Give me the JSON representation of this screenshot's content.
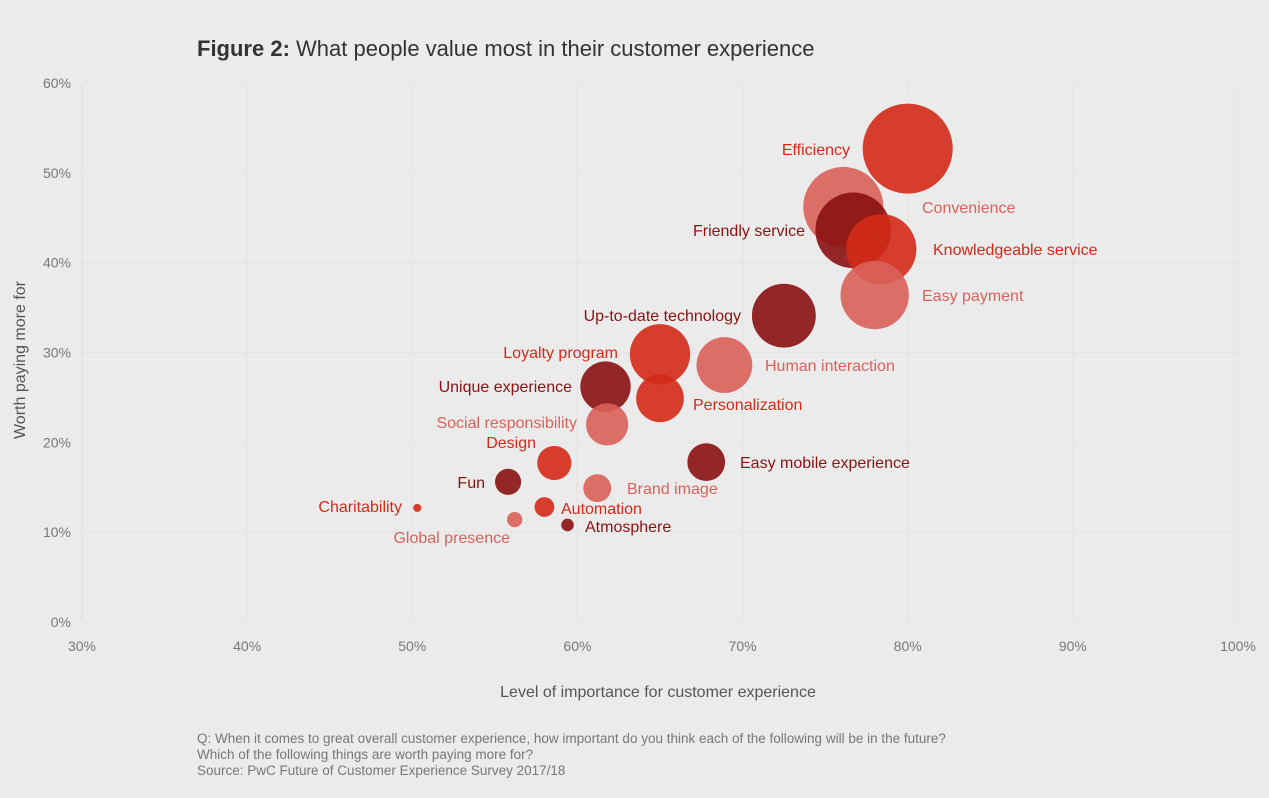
{
  "chart_data": {
    "type": "scatter",
    "title_prefix": "Figure 2:",
    "title": "What people value most in their customer experience",
    "xlabel": "Level of importance for customer experience",
    "ylabel": "Worth paying more for",
    "xlim": [
      30,
      100
    ],
    "ylim": [
      0,
      60
    ],
    "x_ticks": [
      "30%",
      "40%",
      "50%",
      "60%",
      "70%",
      "80%",
      "90%",
      "100%"
    ],
    "y_ticks": [
      "0%",
      "10%",
      "20%",
      "30%",
      "40%",
      "50%",
      "60%"
    ],
    "grid": true,
    "colors": {
      "bright": "#d42a18",
      "dark": "#8a1212",
      "light": "#d9625a"
    },
    "points": [
      {
        "label": "Efficiency",
        "x": 80.0,
        "y": 52.7,
        "size": 100,
        "color": "bright"
      },
      {
        "label": "Convenience",
        "x": 76.1,
        "y": 46.2,
        "size": 89,
        "color": "light"
      },
      {
        "label": "Friendly service",
        "x": 76.7,
        "y": 43.6,
        "size": 84,
        "color": "dark"
      },
      {
        "label": "Knowledgeable service",
        "x": 78.4,
        "y": 41.5,
        "size": 78,
        "color": "bright"
      },
      {
        "label": "Easy payment",
        "x": 78.0,
        "y": 36.4,
        "size": 76,
        "color": "light"
      },
      {
        "label": "Up-to-date technology",
        "x": 72.5,
        "y": 34.1,
        "size": 71,
        "color": "dark"
      },
      {
        "label": "Human interaction",
        "x": 68.9,
        "y": 28.6,
        "size": 62,
        "color": "light"
      },
      {
        "label": "Loyalty program",
        "x": 65.0,
        "y": 29.8,
        "size": 67,
        "color": "bright"
      },
      {
        "label": "Unique experience",
        "x": 61.7,
        "y": 26.2,
        "size": 56,
        "color": "dark"
      },
      {
        "label": "Personalization",
        "x": 65.0,
        "y": 24.9,
        "size": 53,
        "color": "bright"
      },
      {
        "label": "Social responsibility",
        "x": 61.8,
        "y": 22.0,
        "size": 47,
        "color": "light"
      },
      {
        "label": "Design",
        "x": 58.6,
        "y": 17.7,
        "size": 38,
        "color": "bright"
      },
      {
        "label": "Easy mobile experience",
        "x": 67.8,
        "y": 17.8,
        "size": 42,
        "color": "dark"
      },
      {
        "label": "Brand image",
        "x": 61.2,
        "y": 14.9,
        "size": 31,
        "color": "light"
      },
      {
        "label": "Fun",
        "x": 55.8,
        "y": 15.6,
        "size": 29,
        "color": "dark"
      },
      {
        "label": "Automation",
        "x": 58.0,
        "y": 12.8,
        "size": 22,
        "color": "bright"
      },
      {
        "label": "Charitability",
        "x": 50.3,
        "y": 12.7,
        "size": 9,
        "color": "bright"
      },
      {
        "label": "Global presence",
        "x": 56.2,
        "y": 11.4,
        "size": 17,
        "color": "light"
      },
      {
        "label": "Atmosphere",
        "x": 59.4,
        "y": 10.8,
        "size": 14,
        "color": "dark"
      }
    ]
  },
  "footnote": {
    "line1": "Q: When it comes to great overall customer experience, how important do you think each of the following will be in the future?",
    "line2": "Which of the following things are worth paying more for?",
    "line3": "Source: PwC Future of Customer Experience Survey 2017/18"
  }
}
